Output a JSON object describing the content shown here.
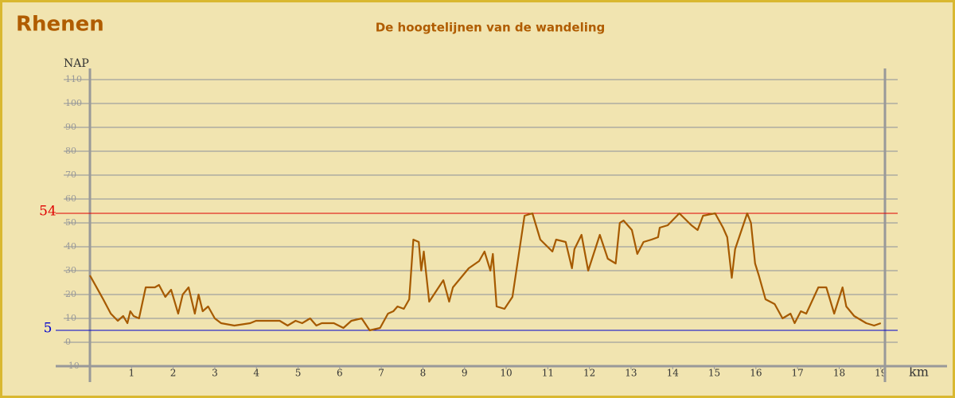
{
  "chart_data": {
    "type": "line",
    "title": "Rhenen",
    "subtitle": "De hoogtelijnen van de wandeling",
    "y_label": "NAP",
    "x_label": "km",
    "x": [
      0,
      0.32,
      0.5,
      0.67,
      0.8,
      0.9,
      0.97,
      1.05,
      1.18,
      1.34,
      1.56,
      1.66,
      1.81,
      1.95,
      2.12,
      2.23,
      2.37,
      2.52,
      2.61,
      2.71,
      2.84,
      3.0,
      3.15,
      3.47,
      3.85,
      3.99,
      4.56,
      4.75,
      4.94,
      5.1,
      5.29,
      5.44,
      5.57,
      5.86,
      6.09,
      6.28,
      6.53,
      6.72,
      6.97,
      7.16,
      7.29,
      7.39,
      7.54,
      7.67,
      7.77,
      7.9,
      7.96,
      8.02,
      8.15,
      8.49,
      8.63,
      8.72,
      9.1,
      9.35,
      9.48,
      9.62,
      9.68,
      9.77,
      9.96,
      10.15,
      10.44,
      10.63,
      10.82,
      11.11,
      11.2,
      11.43,
      11.58,
      11.64,
      11.81,
      11.97,
      12.25,
      12.44,
      12.63,
      12.73,
      12.82,
      13.02,
      13.15,
      13.3,
      13.49,
      13.65,
      13.69,
      13.88,
      14.16,
      14.45,
      14.6,
      14.73,
      15.02,
      15.21,
      15.31,
      15.42,
      15.5,
      15.79,
      15.88,
      15.98,
      16.07,
      16.23,
      16.45,
      16.64,
      16.83,
      16.93,
      17.08,
      17.21,
      17.5,
      17.69,
      17.88,
      18.08,
      18.17,
      18.36,
      18.65,
      18.84,
      19.0
    ],
    "values": [
      28,
      18,
      12,
      9,
      11,
      8,
      13,
      11,
      10,
      23,
      23,
      24,
      19,
      22,
      12,
      20,
      23,
      12,
      20,
      13,
      15,
      10,
      8,
      7,
      8,
      9,
      9,
      7,
      9,
      8,
      10,
      7,
      8,
      8,
      6,
      9,
      10,
      5,
      6,
      12,
      13,
      15,
      14,
      18,
      43,
      42,
      30,
      38,
      17,
      26,
      17,
      23,
      31,
      34,
      38,
      30,
      37,
      15,
      14,
      19,
      53,
      54,
      43,
      38,
      43,
      42,
      31,
      39,
      45,
      30,
      45,
      35,
      33,
      50,
      51,
      47,
      37,
      42,
      43,
      44,
      48,
      49,
      54,
      49,
      47,
      53,
      54,
      48,
      44,
      27,
      39,
      54,
      50,
      33,
      28,
      18,
      16,
      10,
      12,
      8,
      13,
      12,
      23,
      23,
      12,
      23,
      15,
      11,
      8,
      7,
      8
    ],
    "color": "#a65a00",
    "xlim": [
      0,
      19.1
    ],
    "ylim": [
      -10,
      110
    ],
    "xticks": [
      1,
      2,
      3,
      4,
      5,
      6,
      7,
      8,
      9,
      10,
      11,
      12,
      13,
      14,
      15,
      16,
      17,
      18,
      19
    ],
    "yticks": [
      -10,
      0,
      10,
      20,
      30,
      40,
      50,
      60,
      70,
      80,
      90,
      100,
      110
    ],
    "grid": true,
    "reference_lines": [
      {
        "value": 54,
        "color": "#e00000"
      },
      {
        "value": 5,
        "color": "#0000cc"
      }
    ]
  }
}
